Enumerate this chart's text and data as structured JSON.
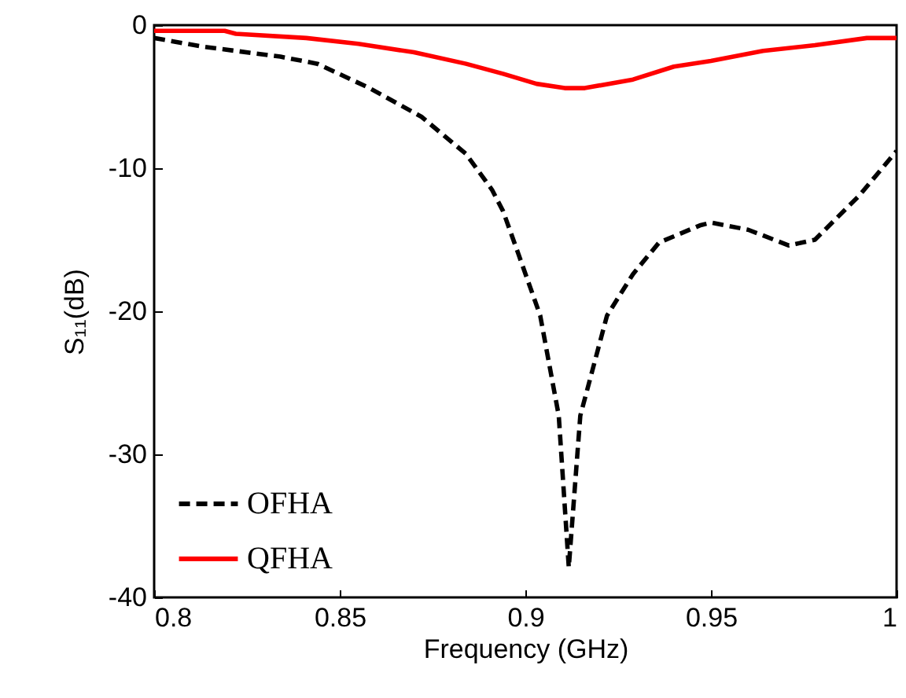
{
  "chart_data": {
    "type": "line",
    "xlabel": "Frequency (GHz)",
    "ylabel": "S₁₁(dB)",
    "xlim": [
      0.8,
      1
    ],
    "xticks": [
      0.8,
      0.85,
      0.9,
      0.95,
      1
    ],
    "ylim": [
      -40,
      0
    ],
    "yticks": [
      -40,
      -30,
      -20,
      -10,
      0
    ],
    "grid": false,
    "legend": "bottom left",
    "series": [
      {
        "name": "OFHA",
        "color": "#000000",
        "line_style": "dashed",
        "x": [
          0.8,
          0.813,
          0.834,
          0.844,
          0.858,
          0.872,
          0.884,
          0.891,
          0.894,
          0.898,
          0.904,
          0.909,
          0.9117,
          0.9148,
          0.922,
          0.929,
          0.936,
          0.947,
          0.95,
          0.96,
          0.971,
          0.978,
          0.99,
          1.0
        ],
        "values": [
          -0.9,
          -1.5,
          -2.2,
          -2.7,
          -4.4,
          -6.4,
          -9.0,
          -11.5,
          -13.0,
          -15.9,
          -20.3,
          -27.3,
          -37.9,
          -27.3,
          -20.3,
          -17.4,
          -15.2,
          -14.0,
          -13.8,
          -14.3,
          -15.4,
          -15.0,
          -11.9,
          -8.8
        ]
      },
      {
        "name": "QFHA",
        "color": "#ff0000",
        "line_style": "solid",
        "x": [
          0.8,
          0.819,
          0.822,
          0.841,
          0.855,
          0.87,
          0.884,
          0.894,
          0.903,
          0.9106,
          0.916,
          0.929,
          0.94,
          0.95,
          0.964,
          0.978,
          0.992,
          1.0
        ],
        "values": [
          -0.4,
          -0.4,
          -0.6,
          -0.9,
          -1.3,
          -1.9,
          -2.7,
          -3.4,
          -4.1,
          -4.4,
          -4.4,
          -3.8,
          -2.9,
          -2.5,
          -1.8,
          -1.4,
          -0.9,
          -0.9
        ]
      }
    ]
  }
}
